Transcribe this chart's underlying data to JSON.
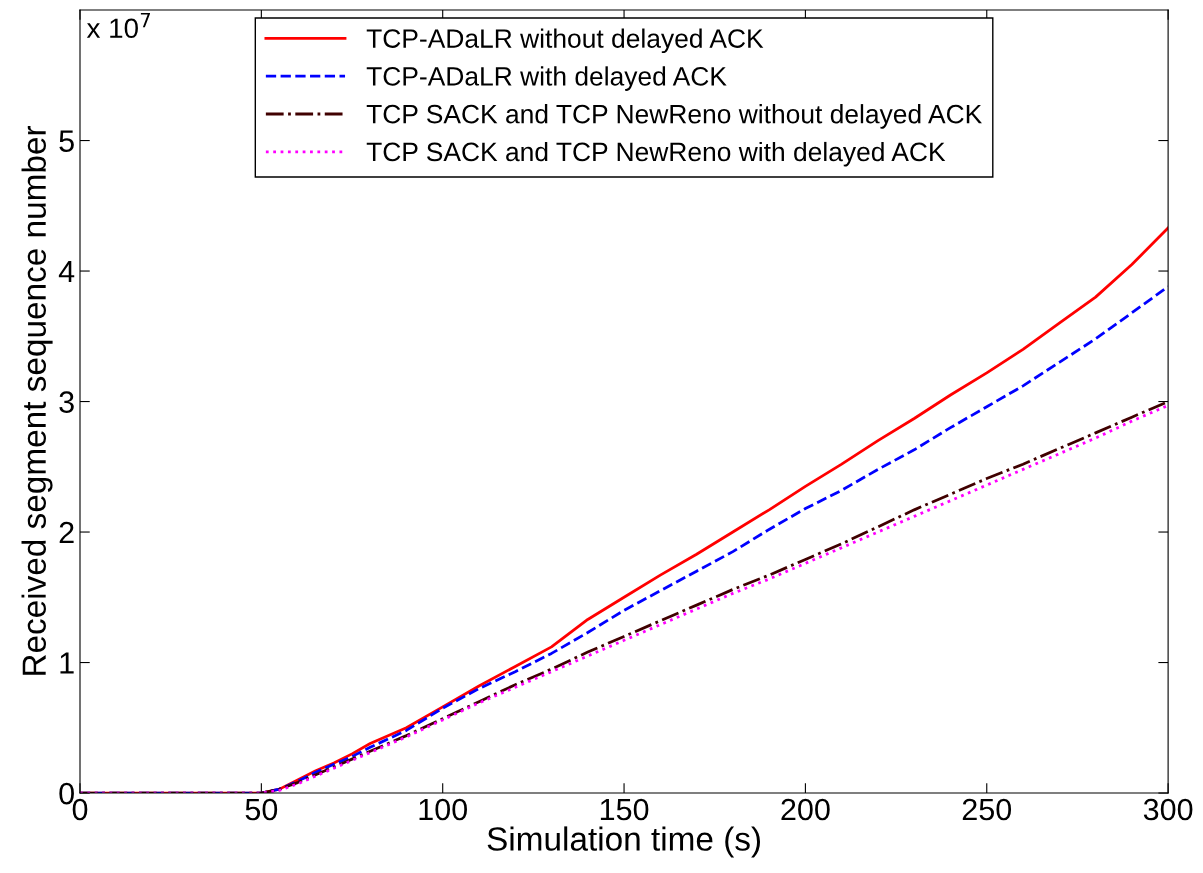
{
  "chart_data": {
    "type": "line",
    "xlabel": "Simulation time (s)",
    "ylabel": "Received segment sequence number",
    "annotations": [
      "x 10$^{7}$"
    ],
    "x": [
      0,
      50,
      55,
      60,
      65,
      70,
      75,
      80,
      90,
      100,
      110,
      120,
      130,
      140,
      150,
      160,
      170,
      180,
      190,
      200,
      210,
      220,
      230,
      240,
      250,
      260,
      270,
      280,
      290,
      300
    ],
    "series": [
      {
        "name": "TCP-ADaLR without delayed ACK",
        "color": "#ff0000",
        "line_style": "solid",
        "values": [
          0,
          0,
          0.03,
          0.1,
          0.17,
          0.23,
          0.3,
          0.38,
          0.5,
          0.66,
          0.82,
          0.97,
          1.12,
          1.33,
          1.5,
          1.67,
          1.83,
          2.0,
          2.17,
          2.35,
          2.52,
          2.7,
          2.87,
          3.05,
          3.22,
          3.4,
          3.6,
          3.8,
          4.05,
          4.33
        ]
      },
      {
        "name": "TCP-ADaLR with delayed ACK",
        "color": "#0000ff",
        "line_style": "dashed",
        "values": [
          0,
          0,
          0.03,
          0.09,
          0.16,
          0.22,
          0.28,
          0.35,
          0.48,
          0.65,
          0.8,
          0.93,
          1.07,
          1.23,
          1.4,
          1.55,
          1.7,
          1.85,
          2.02,
          2.18,
          2.32,
          2.48,
          2.63,
          2.8,
          2.96,
          3.12,
          3.3,
          3.48,
          3.68,
          3.88
        ]
      },
      {
        "name": "TCP SACK and TCP NewReno without delayed ACK",
        "color": "#400000",
        "line_style": "dashdot",
        "values": [
          0,
          0,
          0.03,
          0.08,
          0.14,
          0.2,
          0.26,
          0.32,
          0.44,
          0.57,
          0.7,
          0.83,
          0.95,
          1.08,
          1.2,
          1.32,
          1.44,
          1.56,
          1.67,
          1.79,
          1.91,
          2.04,
          2.17,
          2.29,
          2.41,
          2.52,
          2.64,
          2.76,
          2.88,
          3.0
        ]
      },
      {
        "name": "TCP SACK and TCP NewReno with delayed ACK",
        "color": "#ff00ff",
        "line_style": "dotted",
        "values": [
          0,
          0,
          0.02,
          0.07,
          0.13,
          0.19,
          0.25,
          0.31,
          0.43,
          0.56,
          0.69,
          0.81,
          0.93,
          1.05,
          1.17,
          1.29,
          1.41,
          1.53,
          1.64,
          1.76,
          1.88,
          2.0,
          2.12,
          2.24,
          2.36,
          2.48,
          2.6,
          2.72,
          2.85,
          2.97
        ]
      }
    ],
    "xlim": [
      0,
      300
    ],
    "xticks": [
      0,
      50,
      100,
      150,
      200,
      250,
      300
    ],
    "ylim": [
      0,
      6
    ],
    "yticks": [
      0,
      1,
      2,
      3,
      4,
      5
    ],
    "grid": false,
    "legend": "top",
    "marker": "none"
  }
}
